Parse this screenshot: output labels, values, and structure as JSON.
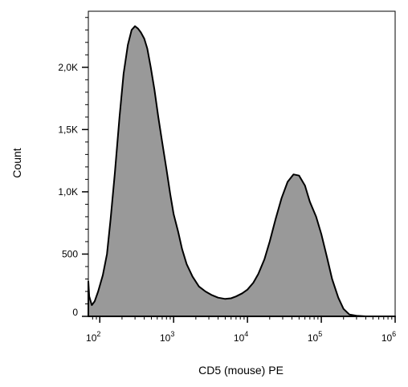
{
  "chart_data": {
    "type": "area",
    "title": "",
    "xlabel": "CD5 (mouse) PE",
    "ylabel": "Count",
    "x_scale": "log",
    "xlim": [
      70,
      1000000
    ],
    "ylim": [
      0,
      2450
    ],
    "fill_color": "#999999",
    "stroke_color": "#000000",
    "grid": false,
    "legend": "none",
    "x_ticks": [
      {
        "value": 100,
        "base": "10",
        "exp": "2"
      },
      {
        "value": 1000,
        "base": "10",
        "exp": "3"
      },
      {
        "value": 10000,
        "base": "10",
        "exp": "4"
      },
      {
        "value": 100000,
        "base": "10",
        "exp": "5"
      },
      {
        "value": 1000000,
        "base": "10",
        "exp": "6"
      }
    ],
    "y_ticks": [
      {
        "value": 0,
        "label": "0"
      },
      {
        "value": 500,
        "label": "500"
      },
      {
        "value": 1000,
        "label": "1,0K"
      },
      {
        "value": 1500,
        "label": "1,5K"
      },
      {
        "value": 2000,
        "label": "2,0K"
      }
    ],
    "series": [
      {
        "x": [
          70,
          72,
          78,
          85,
          95,
          110,
          125,
          140,
          160,
          185,
          210,
          240,
          270,
          300,
          330,
          360,
          400,
          440,
          490,
          550,
          620,
          700,
          800,
          900,
          1000,
          1150,
          1300,
          1500,
          1800,
          2200,
          2700,
          3300,
          4000,
          5000,
          6000,
          7000,
          8500,
          10000,
          12000,
          14000,
          17000,
          20000,
          24000,
          29000,
          35000,
          42000,
          50000,
          60000,
          70000,
          85000,
          100000,
          120000,
          140000,
          170000,
          200000,
          240000,
          300000,
          400000,
          600000,
          1000000
        ],
        "y": [
          280,
          160,
          90,
          120,
          200,
          330,
          500,
          780,
          1150,
          1600,
          1950,
          2180,
          2300,
          2330,
          2310,
          2280,
          2230,
          2150,
          2000,
          1820,
          1600,
          1400,
          1180,
          980,
          820,
          680,
          540,
          420,
          320,
          240,
          200,
          170,
          150,
          140,
          145,
          160,
          185,
          215,
          270,
          340,
          460,
          600,
          780,
          950,
          1080,
          1140,
          1130,
          1050,
          920,
          800,
          660,
          470,
          300,
          150,
          60,
          15,
          5,
          0,
          0,
          0
        ]
      }
    ]
  }
}
